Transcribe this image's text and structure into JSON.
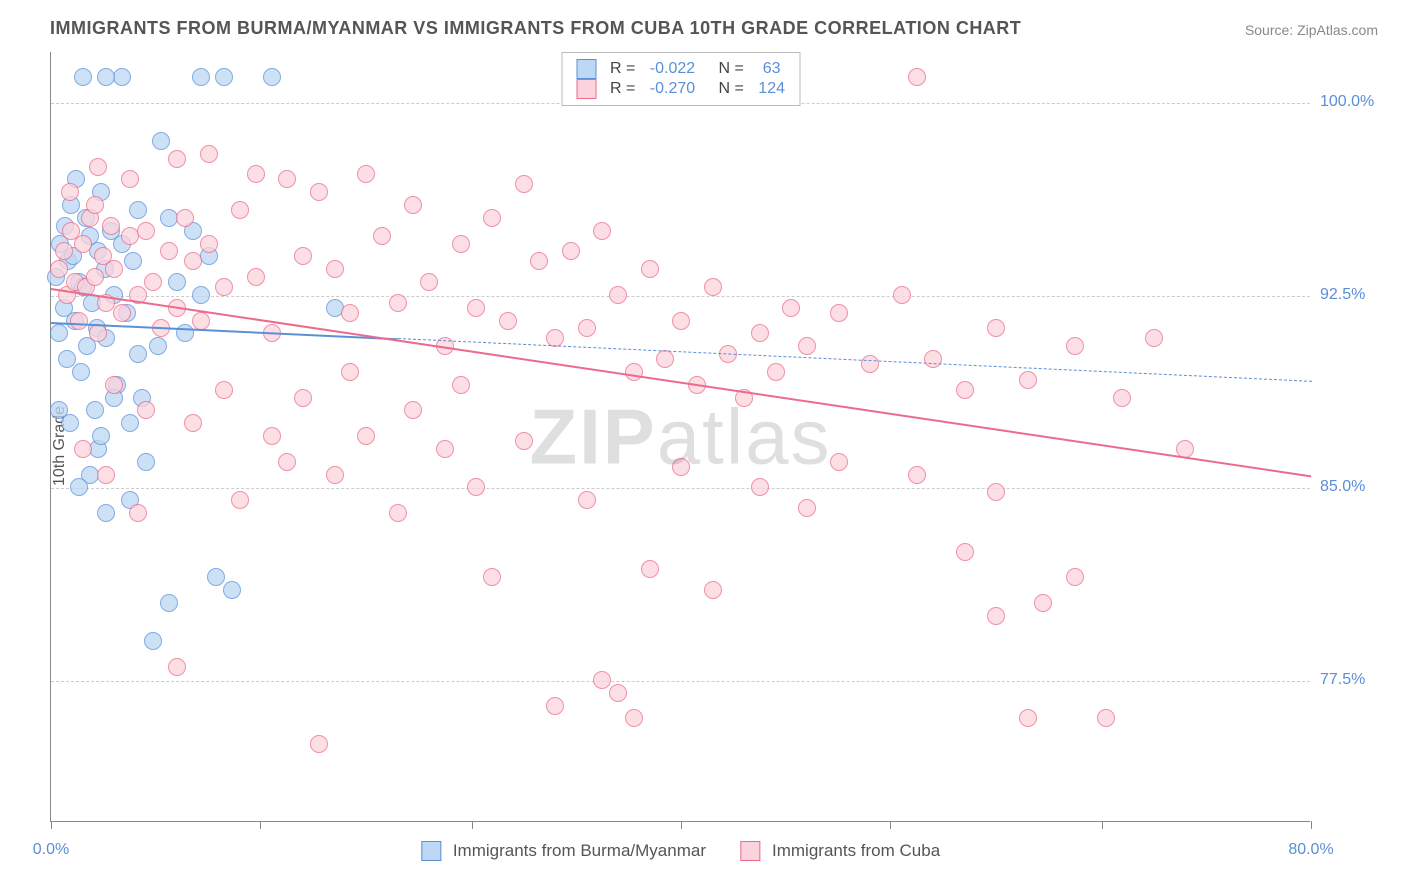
{
  "title": "IMMIGRANTS FROM BURMA/MYANMAR VS IMMIGRANTS FROM CUBA 10TH GRADE CORRELATION CHART",
  "source": "Source: ZipAtlas.com",
  "ylabel": "10th Grade",
  "watermark_bold": "ZIP",
  "watermark_rest": "atlas",
  "chart": {
    "type": "scatter",
    "background_color": "#ffffff",
    "grid_color": "#cccccc",
    "axis_color": "#888888",
    "xlim": [
      0,
      80
    ],
    "ylim": [
      72,
      102
    ],
    "xticks": [
      0,
      13.3,
      26.7,
      40,
      53.3,
      66.7,
      80
    ],
    "xtick_labels": [
      "0.0%",
      "",
      "",
      "",
      "",
      "",
      "80.0%"
    ],
    "yticks": [
      77.5,
      85.0,
      92.5,
      100.0
    ],
    "ytick_labels": [
      "77.5%",
      "85.0%",
      "92.5%",
      "100.0%"
    ],
    "marker_radius": 9,
    "marker_stroke_width": 1.5,
    "label_color": "#5b8fd6",
    "text_color": "#555555",
    "title_fontsize": 18,
    "label_fontsize": 16
  },
  "series": [
    {
      "name": "Immigrants from Burma/Myanmar",
      "fill": "#bcd8f4",
      "stroke": "#5b8fd6",
      "R": "-0.022",
      "N": "63",
      "trend": {
        "x1": 0,
        "y1": 91.5,
        "x2": 80,
        "y2": 89.2,
        "solid_until_x": 22,
        "width": 2.2
      },
      "points": [
        [
          0.3,
          93.2
        ],
        [
          0.5,
          91.0
        ],
        [
          0.6,
          94.5
        ],
        [
          0.8,
          92.0
        ],
        [
          0.9,
          95.2
        ],
        [
          1.0,
          90.0
        ],
        [
          1.1,
          93.8
        ],
        [
          1.3,
          96.0
        ],
        [
          1.4,
          94.0
        ],
        [
          1.5,
          91.5
        ],
        [
          1.6,
          97.0
        ],
        [
          1.8,
          93.0
        ],
        [
          1.9,
          89.5
        ],
        [
          2.0,
          92.8
        ],
        [
          2.2,
          95.5
        ],
        [
          2.3,
          90.5
        ],
        [
          2.5,
          94.8
        ],
        [
          2.6,
          92.2
        ],
        [
          2.8,
          88.0
        ],
        [
          2.9,
          91.2
        ],
        [
          3.0,
          94.2
        ],
        [
          3.2,
          96.5
        ],
        [
          3.4,
          93.5
        ],
        [
          3.5,
          90.8
        ],
        [
          3.8,
          95.0
        ],
        [
          4.0,
          92.5
        ],
        [
          4.2,
          89.0
        ],
        [
          4.5,
          94.5
        ],
        [
          4.8,
          91.8
        ],
        [
          5.0,
          87.5
        ],
        [
          5.2,
          93.8
        ],
        [
          5.5,
          90.2
        ],
        [
          5.8,
          88.5
        ],
        [
          2.0,
          101.0
        ],
        [
          4.5,
          101.0
        ],
        [
          7.0,
          98.5
        ],
        [
          3.5,
          101.0
        ],
        [
          9.5,
          101.0
        ],
        [
          11.0,
          101.0
        ],
        [
          14.0,
          101.0
        ],
        [
          6.0,
          86.0
        ],
        [
          5.0,
          84.5
        ],
        [
          3.0,
          86.5
        ],
        [
          3.5,
          84.0
        ],
        [
          7.5,
          95.5
        ],
        [
          8.0,
          93.0
        ],
        [
          8.5,
          91.0
        ],
        [
          9.0,
          95.0
        ],
        [
          9.5,
          92.5
        ],
        [
          10.0,
          94.0
        ],
        [
          18.0,
          92.0
        ],
        [
          6.5,
          79.0
        ],
        [
          7.5,
          80.5
        ],
        [
          11.5,
          81.0
        ],
        [
          10.5,
          81.5
        ],
        [
          4.0,
          88.5
        ],
        [
          5.5,
          95.8
        ],
        [
          6.8,
          90.5
        ],
        [
          3.2,
          87.0
        ],
        [
          2.5,
          85.5
        ],
        [
          1.2,
          87.5
        ],
        [
          0.5,
          88.0
        ],
        [
          1.8,
          85.0
        ]
      ]
    },
    {
      "name": "Immigrants from Cuba",
      "fill": "#fbd3dd",
      "stroke": "#ec6b8c",
      "R": "-0.270",
      "N": "124",
      "trend": {
        "x1": 0,
        "y1": 92.8,
        "x2": 80,
        "y2": 85.5,
        "solid_until_x": 80,
        "width": 2.2
      },
      "points": [
        [
          0.5,
          93.5
        ],
        [
          0.8,
          94.2
        ],
        [
          1.0,
          92.5
        ],
        [
          1.3,
          95.0
        ],
        [
          1.5,
          93.0
        ],
        [
          1.8,
          91.5
        ],
        [
          2.0,
          94.5
        ],
        [
          2.2,
          92.8
        ],
        [
          2.5,
          95.5
        ],
        [
          2.8,
          93.2
        ],
        [
          3.0,
          91.0
        ],
        [
          3.3,
          94.0
        ],
        [
          3.5,
          92.2
        ],
        [
          3.8,
          95.2
        ],
        [
          4.0,
          93.5
        ],
        [
          4.5,
          91.8
        ],
        [
          5.0,
          94.8
        ],
        [
          5.5,
          92.5
        ],
        [
          6.0,
          95.0
        ],
        [
          6.5,
          93.0
        ],
        [
          7.0,
          91.2
        ],
        [
          7.5,
          94.2
        ],
        [
          8.0,
          92.0
        ],
        [
          8.5,
          95.5
        ],
        [
          9.0,
          93.8
        ],
        [
          9.5,
          91.5
        ],
        [
          10.0,
          94.5
        ],
        [
          11.0,
          92.8
        ],
        [
          12.0,
          95.8
        ],
        [
          13.0,
          93.2
        ],
        [
          14.0,
          91.0
        ],
        [
          15.0,
          97.0
        ],
        [
          16.0,
          94.0
        ],
        [
          17.0,
          96.5
        ],
        [
          18.0,
          93.5
        ],
        [
          19.0,
          91.8
        ],
        [
          20.0,
          97.2
        ],
        [
          21.0,
          94.8
        ],
        [
          22.0,
          92.2
        ],
        [
          23.0,
          96.0
        ],
        [
          24.0,
          93.0
        ],
        [
          25.0,
          90.5
        ],
        [
          26.0,
          94.5
        ],
        [
          27.0,
          92.0
        ],
        [
          28.0,
          95.5
        ],
        [
          29.0,
          91.5
        ],
        [
          30.0,
          96.8
        ],
        [
          31.0,
          93.8
        ],
        [
          32.0,
          90.8
        ],
        [
          33.0,
          94.2
        ],
        [
          34.0,
          91.2
        ],
        [
          35.0,
          95.0
        ],
        [
          36.0,
          92.5
        ],
        [
          37.0,
          89.5
        ],
        [
          38.0,
          93.5
        ],
        [
          39.0,
          90.0
        ],
        [
          40.0,
          91.5
        ],
        [
          41.0,
          89.0
        ],
        [
          42.0,
          92.8
        ],
        [
          43.0,
          90.2
        ],
        [
          44.0,
          88.5
        ],
        [
          45.0,
          91.0
        ],
        [
          46.0,
          89.5
        ],
        [
          47.0,
          92.0
        ],
        [
          48.0,
          90.5
        ],
        [
          50.0,
          91.8
        ],
        [
          52.0,
          89.8
        ],
        [
          54.0,
          92.5
        ],
        [
          56.0,
          90.0
        ],
        [
          58.0,
          88.8
        ],
        [
          60.0,
          91.2
        ],
        [
          62.0,
          89.2
        ],
        [
          55.0,
          101.0
        ],
        [
          65.0,
          90.5
        ],
        [
          68.0,
          88.5
        ],
        [
          70.0,
          90.8
        ],
        [
          72.0,
          86.5
        ],
        [
          8.0,
          78.0
        ],
        [
          12.0,
          84.5
        ],
        [
          15.0,
          86.0
        ],
        [
          17.0,
          75.0
        ],
        [
          18.0,
          85.5
        ],
        [
          20.0,
          87.0
        ],
        [
          22.0,
          84.0
        ],
        [
          25.0,
          86.5
        ],
        [
          27.0,
          85.0
        ],
        [
          28.0,
          81.5
        ],
        [
          30.0,
          86.8
        ],
        [
          32.0,
          76.5
        ],
        [
          34.0,
          84.5
        ],
        [
          36.0,
          77.0
        ],
        [
          37.0,
          76.0
        ],
        [
          40.0,
          85.8
        ],
        [
          42.0,
          81.0
        ],
        [
          45.0,
          85.0
        ],
        [
          48.0,
          84.2
        ],
        [
          50.0,
          86.0
        ],
        [
          55.0,
          85.5
        ],
        [
          58.0,
          82.5
        ],
        [
          60.0,
          84.8
        ],
        [
          60.0,
          80.0
        ],
        [
          63.0,
          80.5
        ],
        [
          62.0,
          76.0
        ],
        [
          65.0,
          81.5
        ],
        [
          67.0,
          76.0
        ],
        [
          3.0,
          97.5
        ],
        [
          5.0,
          97.0
        ],
        [
          8.0,
          97.8
        ],
        [
          10.0,
          98.0
        ],
        [
          13.0,
          97.2
        ],
        [
          4.0,
          89.0
        ],
        [
          6.0,
          88.0
        ],
        [
          9.0,
          87.5
        ],
        [
          11.0,
          88.8
        ],
        [
          14.0,
          87.0
        ],
        [
          2.0,
          86.5
        ],
        [
          3.5,
          85.5
        ],
        [
          5.5,
          84.0
        ],
        [
          35.0,
          77.5
        ],
        [
          38.0,
          81.8
        ],
        [
          1.2,
          96.5
        ],
        [
          2.8,
          96.0
        ],
        [
          16.0,
          88.5
        ],
        [
          19.0,
          89.5
        ],
        [
          23.0,
          88.0
        ],
        [
          26.0,
          89.0
        ]
      ]
    }
  ],
  "legend_top": {
    "R_label": "R =",
    "N_label": "N ="
  },
  "legend_bottom": [
    "Immigrants from Burma/Myanmar",
    "Immigrants from Cuba"
  ]
}
